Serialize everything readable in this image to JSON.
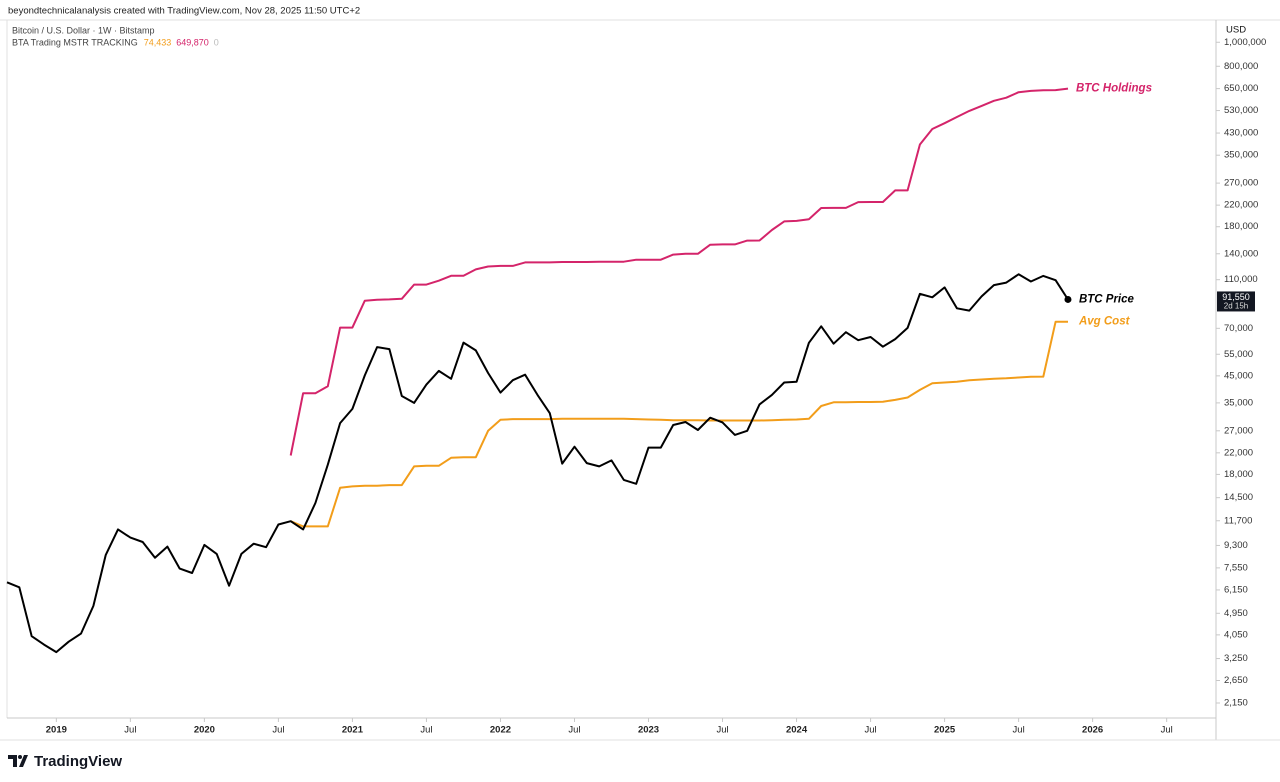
{
  "header": {
    "attribution": "beyondtechnicalanalysis created with TradingView.com, Nov 28, 2025 11:50 UTC+2",
    "symbol": "Bitcoin / U.S. Dollar · 1W · Bitstamp",
    "indicator": "BTA Trading MSTR TRACKING",
    "indicator_values": [
      {
        "text": "74,433",
        "color": "#f29d1a"
      },
      {
        "text": "649,870",
        "color": "#d4246a"
      },
      {
        "text": "0",
        "color": "#bbbbbb"
      }
    ]
  },
  "chart_data": {
    "type": "line",
    "log_scale": true,
    "currency": "USD",
    "x": [
      "2018-09",
      "2018-10",
      "2018-11",
      "2018-12",
      "2019-01",
      "2019-02",
      "2019-03",
      "2019-04",
      "2019-05",
      "2019-06",
      "2019-07",
      "2019-08",
      "2019-09",
      "2019-10",
      "2019-11",
      "2019-12",
      "2020-01",
      "2020-02",
      "2020-03",
      "2020-04",
      "2020-05",
      "2020-06",
      "2020-07",
      "2020-08",
      "2020-09",
      "2020-10",
      "2020-11",
      "2020-12",
      "2021-01",
      "2021-02",
      "2021-03",
      "2021-04",
      "2021-05",
      "2021-06",
      "2021-07",
      "2021-08",
      "2021-09",
      "2021-10",
      "2021-11",
      "2021-12",
      "2022-01",
      "2022-02",
      "2022-03",
      "2022-04",
      "2022-05",
      "2022-06",
      "2022-07",
      "2022-08",
      "2022-09",
      "2022-10",
      "2022-11",
      "2022-12",
      "2023-01",
      "2023-02",
      "2023-03",
      "2023-04",
      "2023-05",
      "2023-06",
      "2023-07",
      "2023-08",
      "2023-09",
      "2023-10",
      "2023-11",
      "2023-12",
      "2024-01",
      "2024-02",
      "2024-03",
      "2024-04",
      "2024-05",
      "2024-06",
      "2024-07",
      "2024-08",
      "2024-09",
      "2024-10",
      "2024-11",
      "2024-12",
      "2025-01",
      "2025-02",
      "2025-03",
      "2025-04",
      "2025-05",
      "2025-06",
      "2025-07",
      "2025-08",
      "2025-09",
      "2025-10",
      "2025-11"
    ],
    "xlim": [
      "2018-09",
      "2026-11"
    ],
    "xticks": [
      {
        "value": "2019-01",
        "label": "2019"
      },
      {
        "value": "2019-07",
        "label": "Jul"
      },
      {
        "value": "2020-01",
        "label": "2020"
      },
      {
        "value": "2020-07",
        "label": "Jul"
      },
      {
        "value": "2021-01",
        "label": "2021"
      },
      {
        "value": "2021-07",
        "label": "Jul"
      },
      {
        "value": "2022-01",
        "label": "2022"
      },
      {
        "value": "2022-07",
        "label": "Jul"
      },
      {
        "value": "2023-01",
        "label": "2023"
      },
      {
        "value": "2023-07",
        "label": "Jul"
      },
      {
        "value": "2024-01",
        "label": "2024"
      },
      {
        "value": "2024-07",
        "label": "Jul"
      },
      {
        "value": "2025-01",
        "label": "2025"
      },
      {
        "value": "2025-07",
        "label": "Jul"
      },
      {
        "value": "2026-01",
        "label": "2026"
      },
      {
        "value": "2026-07",
        "label": "Jul"
      }
    ],
    "ylim": [
      1870,
      1230000
    ],
    "yticks": [
      {
        "value": 2150,
        "label": "2,150"
      },
      {
        "value": 2650,
        "label": "2,650"
      },
      {
        "value": 3250,
        "label": "3,250"
      },
      {
        "value": 4050,
        "label": "4,050"
      },
      {
        "value": 4950,
        "label": "4,950"
      },
      {
        "value": 6150,
        "label": "6,150"
      },
      {
        "value": 7550,
        "label": "7,550"
      },
      {
        "value": 9300,
        "label": "9,300"
      },
      {
        "value": 11700,
        "label": "11,700"
      },
      {
        "value": 14500,
        "label": "14,500"
      },
      {
        "value": 18000,
        "label": "18,000"
      },
      {
        "value": 22000,
        "label": "22,000"
      },
      {
        "value": 27000,
        "label": "27,000"
      },
      {
        "value": 35000,
        "label": "35,000"
      },
      {
        "value": 45000,
        "label": "45,000"
      },
      {
        "value": 55000,
        "label": "55,000"
      },
      {
        "value": 70000,
        "label": "70,000"
      },
      {
        "value": 110000,
        "label": "110,000"
      },
      {
        "value": 140000,
        "label": "140,000"
      },
      {
        "value": 180000,
        "label": "180,000"
      },
      {
        "value": 220000,
        "label": "220,000"
      },
      {
        "value": 270000,
        "label": "270,000"
      },
      {
        "value": 350000,
        "label": "350,000"
      },
      {
        "value": 430000,
        "label": "430,000"
      },
      {
        "value": 530000,
        "label": "530,000"
      },
      {
        "value": 650000,
        "label": "650,000"
      },
      {
        "value": 800000,
        "label": "800,000"
      },
      {
        "value": 1000000,
        "label": "1,000,000"
      }
    ],
    "series": [
      {
        "name": "BTC Price",
        "color": "#000000",
        "values": [
          6600,
          6300,
          4000,
          3700,
          3450,
          3800,
          4100,
          5300,
          8500,
          10800,
          10000,
          9600,
          8300,
          9200,
          7500,
          7200,
          9350,
          8600,
          6400,
          8600,
          9450,
          9150,
          11300,
          11650,
          10800,
          13800,
          19700,
          29000,
          33100,
          45200,
          58800,
          57700,
          37300,
          35000,
          41500,
          47100,
          43800,
          61300,
          57000,
          46200,
          38500,
          43200,
          45500,
          37700,
          31800,
          19900,
          23300,
          20000,
          19400,
          20500,
          17100,
          16500,
          23100,
          23100,
          28500,
          29300,
          27200,
          30500,
          29200,
          26000,
          27000,
          34500,
          37700,
          42300,
          42600,
          61200,
          71300,
          60700,
          67500,
          62700,
          64600,
          59000,
          63300,
          70300,
          96400,
          93400,
          102400,
          84300,
          82500,
          94200,
          104600,
          107100,
          115700,
          108200,
          114000,
          109500,
          91550
        ]
      },
      {
        "name": "Avg Cost",
        "color": "#f29d1a",
        "values": [
          null,
          null,
          null,
          null,
          null,
          null,
          null,
          null,
          null,
          null,
          null,
          null,
          null,
          null,
          null,
          null,
          null,
          null,
          null,
          null,
          null,
          null,
          null,
          11650,
          11100,
          11100,
          11100,
          15900,
          16100,
          16200,
          16200,
          16300,
          16300,
          19400,
          19500,
          19500,
          21000,
          21100,
          21100,
          27000,
          29900,
          30100,
          30100,
          30100,
          30100,
          30200,
          30200,
          30200,
          30200,
          30200,
          30200,
          30100,
          30000,
          29900,
          29800,
          29800,
          29800,
          29700,
          29700,
          29700,
          29700,
          29700,
          29800,
          29900,
          30000,
          30200,
          34000,
          35200,
          35200,
          35300,
          35300,
          35400,
          36000,
          36800,
          39500,
          42000,
          42300,
          42600,
          43200,
          43500,
          43800,
          44000,
          44300,
          44600,
          44700,
          74433,
          74433
        ]
      },
      {
        "name": "BTC Holdings",
        "color": "#d4246a",
        "values": [
          null,
          null,
          null,
          null,
          null,
          null,
          null,
          null,
          null,
          null,
          null,
          null,
          null,
          null,
          null,
          null,
          null,
          null,
          null,
          null,
          null,
          null,
          null,
          21454,
          38250,
          38250,
          40824,
          70470,
          70470,
          90531,
          91326,
          91579,
          92079,
          105085,
          105085,
          108992,
          114042,
          114042,
          121044,
          124391,
          125051,
          125051,
          129218,
          129218,
          129218,
          129699,
          129699,
          129699,
          130000,
          130000,
          130000,
          132500,
          132500,
          132500,
          138955,
          140000,
          140000,
          152333,
          152800,
          152800,
          158245,
          158400,
          174530,
          189150,
          190000,
          193000,
          214246,
          214400,
          214400,
          226331,
          226500,
          226500,
          252220,
          252220,
          386700,
          446400,
          471107,
          499096,
          528185,
          553555,
          580250,
          597325,
          628791,
          636505,
          640031,
          640808,
          649870
        ]
      }
    ],
    "price_tag": {
      "price": "91,550",
      "countdown": "2d 15h"
    }
  },
  "footer": {
    "brand": "TradingView"
  }
}
